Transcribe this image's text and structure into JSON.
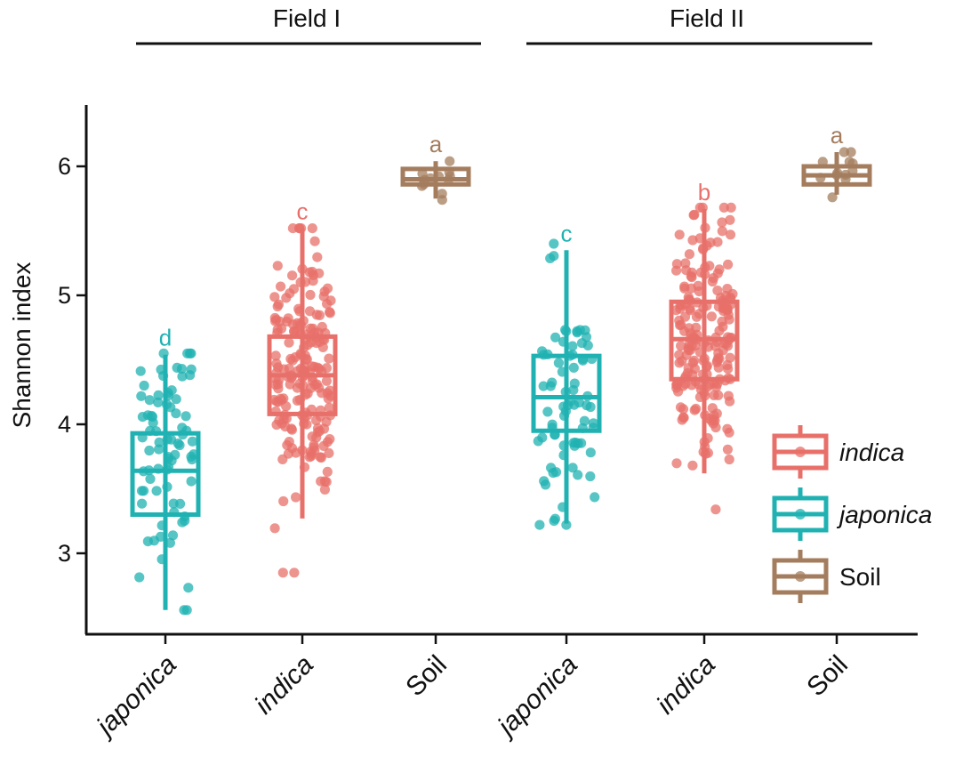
{
  "chart_data": {
    "type": "box",
    "ylabel": "Shannon index",
    "ylim": [
      2.5,
      6.5
    ],
    "yticks": [
      3,
      4,
      5,
      6
    ],
    "grid": false,
    "legend_position": "bottom-right",
    "legend": [
      {
        "label": "indica",
        "color": "#E8706A",
        "italic": true
      },
      {
        "label": "japonica",
        "color": "#20B2B2",
        "italic": true
      },
      {
        "label": "Soil",
        "color": "#A47D5E",
        "italic": false
      }
    ],
    "groups": [
      {
        "label": "Field I",
        "boxes": [
          {
            "category": "japonica",
            "series": "japonica",
            "whisker_low": 2.56,
            "q1": 3.3,
            "median": 3.64,
            "q3": 3.93,
            "whisker_high": 4.54,
            "letter": "d",
            "n_points": 80,
            "point_min": 2.56,
            "point_max": 4.55
          },
          {
            "category": "indica",
            "series": "indica",
            "whisker_low": 3.27,
            "q1": 4.08,
            "median": 4.38,
            "q3": 4.68,
            "whisker_high": 5.52,
            "letter": "c",
            "n_points": 200,
            "point_min": 2.85,
            "point_max": 5.52
          },
          {
            "category": "Soil",
            "series": "Soil",
            "whisker_low": 5.75,
            "q1": 5.86,
            "median": 5.9,
            "q3": 5.98,
            "whisker_high": 6.04,
            "letter": "a",
            "n_points": 12,
            "point_min": 5.74,
            "point_max": 6.04
          }
        ]
      },
      {
        "label": "Field II",
        "boxes": [
          {
            "category": "japonica",
            "series": "japonica",
            "whisker_low": 3.23,
            "q1": 3.95,
            "median": 4.21,
            "q3": 4.53,
            "whisker_high": 5.35,
            "letter": "c",
            "n_points": 75,
            "point_min": 3.22,
            "point_max": 5.4
          },
          {
            "category": "indica",
            "series": "indica",
            "whisker_low": 3.62,
            "q1": 4.35,
            "median": 4.66,
            "q3": 4.95,
            "whisker_high": 5.67,
            "letter": "b",
            "n_points": 200,
            "point_min": 3.34,
            "point_max": 5.68
          },
          {
            "category": "Soil",
            "series": "Soil",
            "whisker_low": 5.78,
            "q1": 5.86,
            "median": 5.93,
            "q3": 6.0,
            "whisker_high": 6.11,
            "letter": "a",
            "n_points": 12,
            "point_min": 5.76,
            "point_max": 6.11
          }
        ]
      }
    ]
  }
}
